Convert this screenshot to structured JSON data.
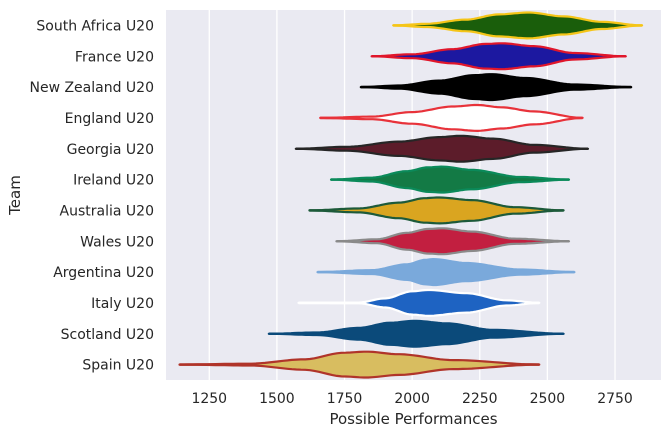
{
  "chart_data": {
    "type": "violin",
    "xlabel": "Possible Performances",
    "ylabel": "Team",
    "xlim": [
      1090,
      2920
    ],
    "xticks": [
      1250,
      1500,
      1750,
      2000,
      2250,
      2500,
      2750
    ],
    "grid": true,
    "background": "#eaeaf2",
    "series": [
      {
        "name": "South Africa U20",
        "fill": "#1a5e0b",
        "edge": "#f5c518",
        "min": 1930,
        "max": 2850,
        "median": 2430,
        "profile": [
          [
            1930,
            0
          ],
          [
            2050,
            0.12
          ],
          [
            2200,
            0.45
          ],
          [
            2320,
            0.85
          ],
          [
            2430,
            1.0
          ],
          [
            2560,
            0.7
          ],
          [
            2700,
            0.28
          ],
          [
            2850,
            0
          ]
        ]
      },
      {
        "name": "France U20",
        "fill": "#1c18a0",
        "edge": "#e0162b",
        "min": 1850,
        "max": 2790,
        "median": 2330,
        "profile": [
          [
            1850,
            0
          ],
          [
            2000,
            0.15
          ],
          [
            2150,
            0.55
          ],
          [
            2270,
            0.95
          ],
          [
            2330,
            1.0
          ],
          [
            2450,
            0.78
          ],
          [
            2600,
            0.25
          ],
          [
            2790,
            0
          ]
        ]
      },
      {
        "name": "New Zealand U20",
        "fill": "#000000",
        "edge": "#000000",
        "min": 1810,
        "max": 2810,
        "median": 2290,
        "profile": [
          [
            1810,
            0
          ],
          [
            1950,
            0.12
          ],
          [
            2100,
            0.5
          ],
          [
            2230,
            0.92
          ],
          [
            2290,
            1.0
          ],
          [
            2420,
            0.7
          ],
          [
            2600,
            0.2
          ],
          [
            2810,
            0
          ]
        ]
      },
      {
        "name": "England U20",
        "fill": "#ffffff",
        "edge": "#e8323a",
        "min": 1660,
        "max": 2630,
        "median": 2240,
        "profile": [
          [
            1660,
            0
          ],
          [
            1850,
            0.1
          ],
          [
            2000,
            0.45
          ],
          [
            2150,
            0.88
          ],
          [
            2240,
            1.0
          ],
          [
            2330,
            0.82
          ],
          [
            2450,
            0.5
          ],
          [
            2630,
            0
          ]
        ]
      },
      {
        "name": "Georgia U20",
        "fill": "#5c1c2a",
        "edge": "#262626",
        "min": 1570,
        "max": 2650,
        "median": 2180,
        "profile": [
          [
            1570,
            0
          ],
          [
            1760,
            0.15
          ],
          [
            1950,
            0.55
          ],
          [
            2100,
            0.9
          ],
          [
            2180,
            1.0
          ],
          [
            2300,
            0.78
          ],
          [
            2450,
            0.3
          ],
          [
            2650,
            0
          ]
        ]
      },
      {
        "name": "Ireland U20",
        "fill": "#137a45",
        "edge": "#0b8a5a",
        "min": 1700,
        "max": 2580,
        "median": 2110,
        "profile": [
          [
            1700,
            0
          ],
          [
            1850,
            0.15
          ],
          [
            1980,
            0.65
          ],
          [
            2060,
            0.95
          ],
          [
            2110,
            1.0
          ],
          [
            2220,
            0.75
          ],
          [
            2400,
            0.2
          ],
          [
            2580,
            0
          ]
        ]
      },
      {
        "name": "Australia U20",
        "fill": "#daa520",
        "edge": "#1d5a3a",
        "min": 1620,
        "max": 2560,
        "median": 2100,
        "profile": [
          [
            1620,
            0
          ],
          [
            1800,
            0.15
          ],
          [
            1950,
            0.6
          ],
          [
            2050,
            0.95
          ],
          [
            2100,
            1.0
          ],
          [
            2220,
            0.8
          ],
          [
            2380,
            0.25
          ],
          [
            2560,
            0
          ]
        ]
      },
      {
        "name": "Wales U20",
        "fill": "#c21f40",
        "edge": "#8a8a8a",
        "min": 1720,
        "max": 2580,
        "median": 2110,
        "profile": [
          [
            1720,
            0
          ],
          [
            1870,
            0.15
          ],
          [
            1980,
            0.65
          ],
          [
            2060,
            0.95
          ],
          [
            2110,
            1.0
          ],
          [
            2220,
            0.75
          ],
          [
            2380,
            0.2
          ],
          [
            2580,
            0
          ]
        ]
      },
      {
        "name": "Argentina U20",
        "fill": "#7aa9db",
        "edge": "#7aa9db",
        "min": 1650,
        "max": 2600,
        "median": 2080,
        "profile": [
          [
            1650,
            0
          ],
          [
            1850,
            0.15
          ],
          [
            1980,
            0.6
          ],
          [
            2050,
            0.95
          ],
          [
            2080,
            1.0
          ],
          [
            2200,
            0.7
          ],
          [
            2400,
            0.2
          ],
          [
            2600,
            0
          ]
        ]
      },
      {
        "name": "Italy U20",
        "fill": "#1e63c2",
        "edge": "#ffffff",
        "min": 1580,
        "max": 2470,
        "median": 2060,
        "profile": [
          [
            1580,
            0
          ],
          [
            1800,
            0.02
          ],
          [
            1900,
            0.35
          ],
          [
            2000,
            0.9
          ],
          [
            2060,
            1.0
          ],
          [
            2200,
            0.75
          ],
          [
            2350,
            0.2
          ],
          [
            2470,
            0
          ]
        ]
      },
      {
        "name": "Scotland U20",
        "fill": "#0b4a7a",
        "edge": "#0b4a7a",
        "min": 1470,
        "max": 2560,
        "median": 2010,
        "profile": [
          [
            1470,
            0
          ],
          [
            1650,
            0.1
          ],
          [
            1800,
            0.45
          ],
          [
            1920,
            0.85
          ],
          [
            2010,
            1.0
          ],
          [
            2130,
            0.8
          ],
          [
            2300,
            0.3
          ],
          [
            2560,
            0
          ]
        ]
      },
      {
        "name": "Spain U20",
        "fill": "#d8bd60",
        "edge": "#b0342a",
        "min": 1140,
        "max": 2470,
        "median": 1830,
        "profile": [
          [
            1140,
            0
          ],
          [
            1400,
            0.07
          ],
          [
            1600,
            0.4
          ],
          [
            1750,
            0.92
          ],
          [
            1830,
            1.0
          ],
          [
            1950,
            0.8
          ],
          [
            2150,
            0.35
          ],
          [
            2470,
            0
          ]
        ]
      }
    ]
  }
}
